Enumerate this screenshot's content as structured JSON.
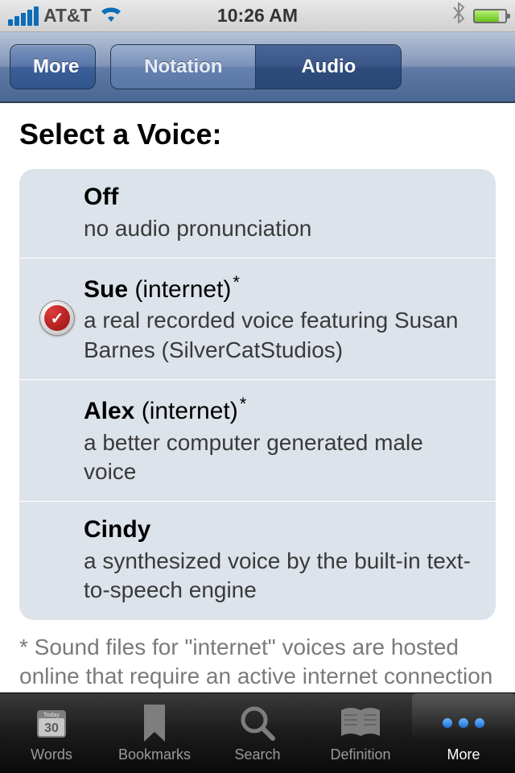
{
  "status": {
    "carrier": "AT&T",
    "time": "10:26 AM"
  },
  "nav": {
    "back_label": "More",
    "segments": {
      "notation": "Notation",
      "audio": "Audio"
    }
  },
  "page": {
    "title": "Select a Voice:"
  },
  "voices": [
    {
      "name": "Off",
      "suffix": "",
      "asterisk": false,
      "selected": false,
      "desc": "no audio pronunciation"
    },
    {
      "name": "Sue",
      "suffix": " (internet)",
      "asterisk": true,
      "selected": true,
      "desc": "a real recorded voice featuring Susan Barnes (SilverCatStudios)"
    },
    {
      "name": "Alex",
      "suffix": " (internet)",
      "asterisk": true,
      "selected": false,
      "desc": "a better computer generated male voice"
    },
    {
      "name": "Cindy",
      "suffix": "",
      "asterisk": false,
      "selected": false,
      "desc": "a synthesized voice by the built-in text-to-speech engine"
    }
  ],
  "footnote": "* Sound files for \"internet\" voices are hosted online that require an active internet connection to play.",
  "tabs": {
    "words": {
      "label": "Words",
      "day": "30",
      "today": "Today"
    },
    "bookmarks": "Bookmarks",
    "search": "Search",
    "definition": "Definition",
    "more": "More"
  }
}
